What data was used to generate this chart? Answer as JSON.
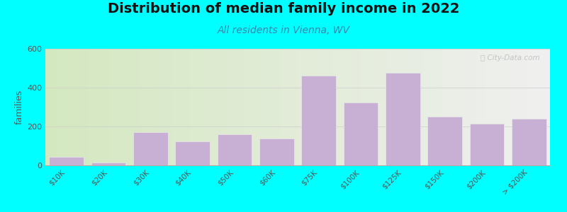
{
  "title": "Distribution of median family income in 2022",
  "subtitle": "All residents in Vienna, WV",
  "ylabel": "families",
  "categories": [
    "$10K",
    "$20K",
    "$30K",
    "$40K",
    "$50K",
    "$60K",
    "$75K",
    "$100K",
    "$125K",
    "$150K",
    "$200K",
    "> $200K"
  ],
  "values": [
    45,
    15,
    170,
    125,
    160,
    140,
    460,
    325,
    475,
    250,
    215,
    240
  ],
  "bar_color": "#c8afd4",
  "bar_edgecolor": "#e8e8e8",
  "background_color": "#00ffff",
  "plot_bg_left": "#d4e8c0",
  "plot_bg_right": "#f0f0f0",
  "ylim": [
    0,
    600
  ],
  "yticks": [
    0,
    200,
    400,
    600
  ],
  "title_fontsize": 14,
  "subtitle_fontsize": 10,
  "subtitle_color": "#3388aa",
  "ylabel_fontsize": 9,
  "watermark_text": "ⓘ City-Data.com",
  "n_gradient_steps": 100
}
